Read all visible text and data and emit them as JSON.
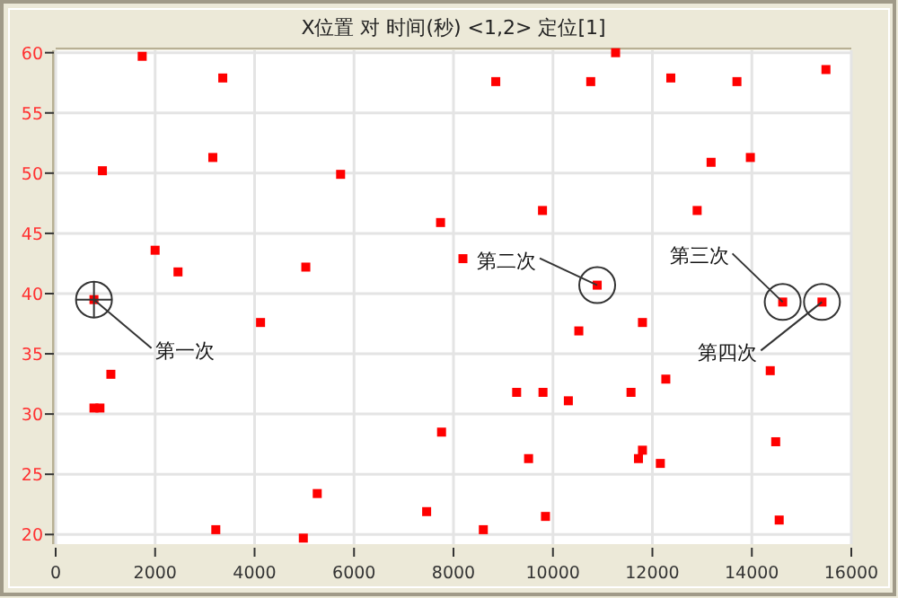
{
  "chart_data": {
    "type": "scatter",
    "title": "X位置 对 时间(秒) <1,2> 定位[1]",
    "x": [
      770,
      940,
      1740,
      3360,
      3160,
      2000,
      2460,
      5030,
      5730,
      7740,
      8190,
      8850,
      11260,
      10760,
      12370,
      13700,
      15490,
      13180,
      13970,
      9790,
      12900,
      10890,
      14620,
      15410,
      1110,
      770,
      890,
      4120,
      3220,
      4980,
      5260,
      7460,
      7760,
      10520,
      11800,
      14370,
      12270,
      9270,
      9800,
      11570,
      10310,
      14480,
      9510,
      11800,
      11720,
      12160,
      9850,
      8600,
      14550
    ],
    "values": [
      39.5,
      50.2,
      59.7,
      57.9,
      51.3,
      43.6,
      41.8,
      42.2,
      49.9,
      45.9,
      42.9,
      57.6,
      60,
      57.6,
      57.9,
      57.6,
      58.6,
      50.9,
      51.3,
      46.9,
      46.9,
      40.7,
      39.3,
      39.3,
      33.3,
      30.5,
      30.5,
      37.6,
      20.4,
      19.7,
      23.4,
      21.9,
      28.5,
      36.9,
      37.6,
      33.6,
      32.9,
      31.8,
      31.8,
      31.8,
      31.1,
      27.7,
      26.3,
      27.0,
      26.3,
      25.9,
      21.5,
      20.4,
      21.2
    ],
    "color": "#ff0000",
    "marker": "square",
    "grid": true,
    "xlim": [
      0,
      16000
    ],
    "xticks": [
      0,
      2000,
      4000,
      6000,
      8000,
      10000,
      12000,
      14000,
      16000
    ],
    "ylim": [
      19.2,
      60.2
    ],
    "yticks": [
      20,
      25,
      30,
      35,
      40,
      45,
      50,
      55,
      60
    ],
    "annotations": [
      {
        "text": "第一次",
        "x": 770,
        "y": 39.5
      },
      {
        "text": "第二次",
        "x": 10890,
        "y": 40.7
      },
      {
        "text": "第三次",
        "x": 14620,
        "y": 39.3
      },
      {
        "text": "第四次",
        "x": 15410,
        "y": 39.3
      }
    ]
  }
}
